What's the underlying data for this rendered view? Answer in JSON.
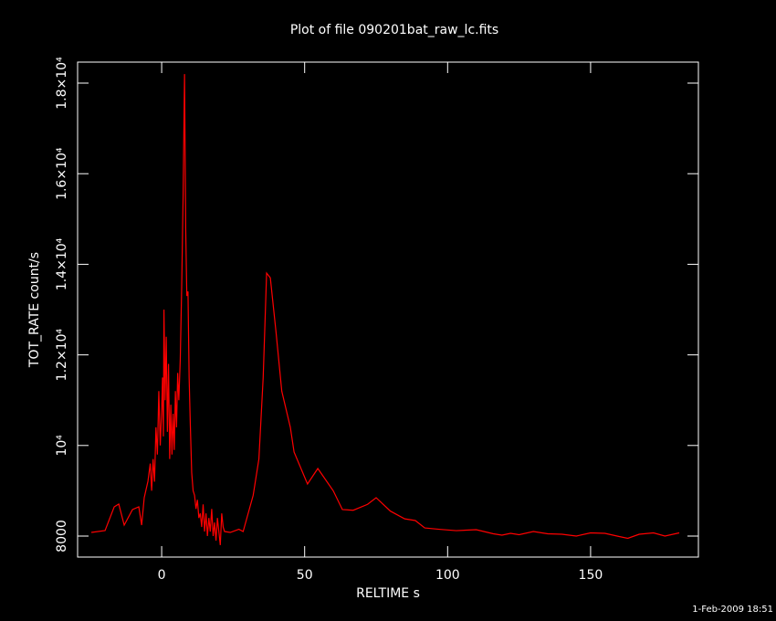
{
  "chart_data": {
    "type": "line",
    "title": "Plot of file 090201bat_raw_lc.fits",
    "x_label": "RELTIME  s",
    "y_label": "TOT_RATE  count/s",
    "footer": "1-Feb-2009 18:51",
    "color": "#ff0000",
    "xlim": [
      -29.4,
      187.7
    ],
    "ylim": [
      7536,
      18464
    ],
    "xticks": [
      0,
      50,
      100,
      150
    ],
    "yticks": [
      8000,
      {
        "value": 10000,
        "label": "10⁴"
      },
      {
        "value": 12000,
        "label": "1.2×10⁴"
      },
      {
        "value": 14000,
        "label": "1.4×10⁴"
      },
      {
        "value": 16000,
        "label": "1.6×10⁴"
      },
      {
        "value": 18000,
        "label": "1.8×10⁴"
      }
    ],
    "x": [
      -24.6,
      -19.8,
      -16.6,
      -15.0,
      -13.1,
      -10.2,
      -8.0,
      -7.0,
      -6.1,
      -4.8,
      -4.0,
      -3.5,
      -3.0,
      -2.5,
      -2.0,
      -1.5,
      -1.0,
      -0.5,
      0.0,
      0.3,
      0.6,
      0.8,
      1.2,
      1.6,
      2.0,
      2.4,
      2.8,
      3.2,
      3.6,
      4.0,
      4.4,
      4.8,
      5.2,
      5.6,
      6.0,
      6.5,
      7.0,
      7.5,
      8.0,
      8.4,
      8.8,
      9.2,
      9.6,
      10.0,
      10.5,
      11.0,
      11.5,
      12.0,
      12.5,
      13.0,
      13.5,
      14.0,
      14.5,
      15.0,
      15.5,
      16.0,
      16.5,
      17.0,
      17.5,
      18.0,
      18.5,
      19.0,
      19.5,
      20.0,
      20.5,
      21.0,
      21.5,
      22.0,
      24.0,
      27.0,
      28.5,
      30.0,
      32.0,
      34.0,
      35.5,
      36.7,
      38.0,
      40.0,
      42.0,
      45.0,
      46.3,
      51.0,
      54.6,
      60.0,
      63.2,
      67.0,
      72.0,
      75.0,
      80.0,
      85.0,
      88.7,
      92.0,
      97.0,
      103.0,
      110.0,
      116.0,
      119.0,
      122.0,
      125.0,
      130.0,
      135.0,
      140.0,
      145.0,
      150.0,
      155.0,
      160.0,
      163.0,
      167.0,
      172.0,
      176.0,
      181.0
    ],
    "values": [
      8081,
      8121,
      8645,
      8706,
      8242,
      8585,
      8645,
      8242,
      8847,
      9210,
      9600,
      9000,
      9700,
      9200,
      10400,
      9800,
      11200,
      10000,
      10800,
      11500,
      10200,
      13000,
      11000,
      12400,
      10300,
      11800,
      9700,
      10900,
      9800,
      10700,
      9900,
      11200,
      10400,
      11600,
      11000,
      11900,
      13500,
      15500,
      18200,
      14800,
      13300,
      13400,
      11500,
      10500,
      9400,
      9000,
      8900,
      8600,
      8800,
      8400,
      8500,
      8200,
      8700,
      8100,
      8500,
      8000,
      8400,
      8100,
      8600,
      8000,
      8300,
      7900,
      8400,
      8100,
      7800,
      8500,
      8200,
      8100,
      8080,
      8150,
      8100,
      8443,
      8900,
      9700,
      11500,
      13806,
      13700,
      12500,
      11200,
      10400,
      9855,
      9149,
      9492,
      9000,
      8585,
      8570,
      8700,
      8847,
      8550,
      8380,
      8343,
      8180,
      8150,
      8120,
      8140,
      8050,
      8020,
      8060,
      8030,
      8100,
      8050,
      8040,
      8000,
      8070,
      8060,
      7990,
      7950,
      8040,
      8070,
      8000,
      8070
    ]
  }
}
